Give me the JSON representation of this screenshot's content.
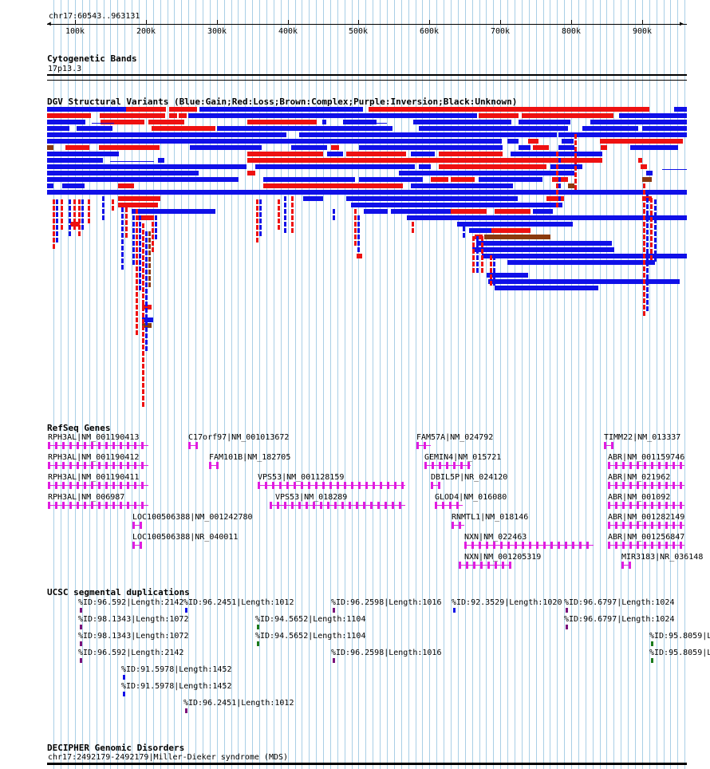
{
  "ruler": {
    "coords": "chr17:60543..963131",
    "ticks": [
      "100k",
      "200k",
      "300k",
      "400k",
      "500k",
      "600k",
      "700k",
      "800k",
      "900k"
    ],
    "start": 60543,
    "end": 963131
  },
  "tracks": {
    "cytobands": {
      "title": "Cytogenetic Bands",
      "band": "17p13.3"
    },
    "dgv": {
      "title": "DGV Structural Variants (Blue:Gain;Red:Loss;Brown:Complex;Purple:Inversion;Black:Unknown)",
      "colors": {
        "gain": "#1010e8",
        "loss": "#ee1111",
        "complex": "#8b3a0e"
      }
    },
    "refseq": {
      "title": "RefSeq Genes",
      "gene_color": "#e01ce0",
      "genes": [
        {
          "label": "RPH3AL|NM_001190413"
        },
        {
          "label": "C17orf97|NM_001013672"
        },
        {
          "label": "FAM57A|NM_024792"
        },
        {
          "label": "TIMM22|NM_013337"
        },
        {
          "label": "RPH3AL|NM_001190412"
        },
        {
          "label": "FAM101B|NM_182705"
        },
        {
          "label": "GEMIN4|NM_015721"
        },
        {
          "label": "ABR|NM_001159746"
        },
        {
          "label": "RPH3AL|NM_001190411"
        },
        {
          "label": "VPS53|NM_001128159"
        },
        {
          "label": "DBIL5P|NR_024120"
        },
        {
          "label": "ABR|NM_021962"
        },
        {
          "label": "RPH3AL|NM_006987"
        },
        {
          "label": "VPS53|NM_018289"
        },
        {
          "label": "GLOD4|NM_016080"
        },
        {
          "label": "ABR|NM_001092"
        },
        {
          "label": "LOC100506388|NM_001242780"
        },
        {
          "label": "RNMTL1|NM_018146"
        },
        {
          "label": "ABR|NM_001282149"
        },
        {
          "label": "LOC100506388|NR_040011"
        },
        {
          "label": "NXN|NM_022463"
        },
        {
          "label": "ABR|NM_001256847"
        },
        {
          "label": "NXN|NM_001205319"
        },
        {
          "label": "MIR3183|NR_036148"
        }
      ]
    },
    "segdups": {
      "title": "UCSC segmental duplications",
      "items": [
        {
          "label": "%ID:96.592|Length:2142"
        },
        {
          "label": "%ID:96.2451|Length:1012"
        },
        {
          "label": "%ID:96.2598|Length:1016"
        },
        {
          "label": "%ID:92.3529|Length:1020"
        },
        {
          "label": "%ID:96.6797|Length:1024"
        },
        {
          "label": "%ID:98.1343|Length:1072"
        },
        {
          "label": "%ID:94.5652|Length:1104"
        },
        {
          "label": "%ID:96.6797|Length:1024"
        },
        {
          "label": "%ID:98.1343|Length:1072"
        },
        {
          "label": "%ID:94.5652|Length:1104"
        },
        {
          "label": "%ID:95.8059|L"
        },
        {
          "label": "%ID:96.592|Length:2142"
        },
        {
          "label": "%ID:96.2598|Length:1016"
        },
        {
          "label": "%ID:95.8059|L"
        },
        {
          "label": "%ID:91.5978|Length:1452"
        },
        {
          "label": "%ID:91.5978|Length:1452"
        },
        {
          "label": "%ID:96.2451|Length:1012"
        }
      ]
    },
    "decipher": {
      "title": "DECIPHER Genomic Disorders",
      "item": "chr17:2492179-2492179|Miller-Dieker syndrome (MDS)"
    }
  }
}
